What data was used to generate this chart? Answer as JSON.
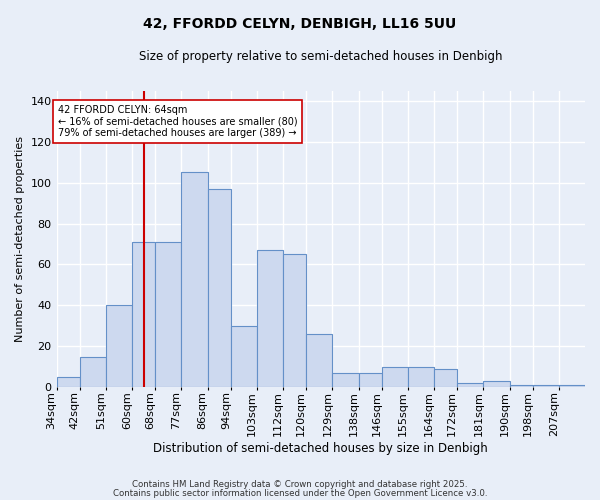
{
  "title1": "42, FFORDD CELYN, DENBIGH, LL16 5UU",
  "title2": "Size of property relative to semi-detached houses in Denbigh",
  "xlabel": "Distribution of semi-detached houses by size in Denbigh",
  "ylabel": "Number of semi-detached properties",
  "bin_labels": [
    "34sqm",
    "42sqm",
    "51sqm",
    "60sqm",
    "68sqm",
    "77sqm",
    "86sqm",
    "94sqm",
    "103sqm",
    "112sqm",
    "120sqm",
    "129sqm",
    "138sqm",
    "146sqm",
    "155sqm",
    "164sqm",
    "172sqm",
    "181sqm",
    "190sqm",
    "198sqm",
    "207sqm"
  ],
  "bin_edges": [
    34,
    42,
    51,
    60,
    68,
    77,
    86,
    94,
    103,
    112,
    120,
    129,
    138,
    146,
    155,
    164,
    172,
    181,
    190,
    198,
    207,
    216
  ],
  "bar_heights": [
    5,
    15,
    40,
    71,
    71,
    105,
    97,
    30,
    67,
    65,
    26,
    7,
    7,
    10,
    10,
    9,
    2,
    3,
    1,
    1,
    1
  ],
  "bar_color": "#cdd9ef",
  "bar_edge_color": "#6490c8",
  "property_line_x": 64,
  "property_line_color": "#cc0000",
  "annotation_text": "42 FFORDD CELYN: 64sqm\n← 16% of semi-detached houses are smaller (80)\n79% of semi-detached houses are larger (389) →",
  "annotation_box_color": "#ffffff",
  "annotation_box_edge": "#cc0000",
  "ylim": [
    0,
    145
  ],
  "yticks": [
    0,
    20,
    40,
    60,
    80,
    100,
    120,
    140
  ],
  "footer1": "Contains HM Land Registry data © Crown copyright and database right 2025.",
  "footer2": "Contains public sector information licensed under the Open Government Licence v3.0.",
  "bg_color": "#e8eef8",
  "plot_bg_color": "#e8eef8",
  "grid_color": "#ffffff",
  "title1_fontsize": 10,
  "title2_fontsize": 8.5,
  "ylabel_fontsize": 8,
  "xlabel_fontsize": 8.5,
  "tick_fontsize": 8,
  "annot_fontsize": 7
}
